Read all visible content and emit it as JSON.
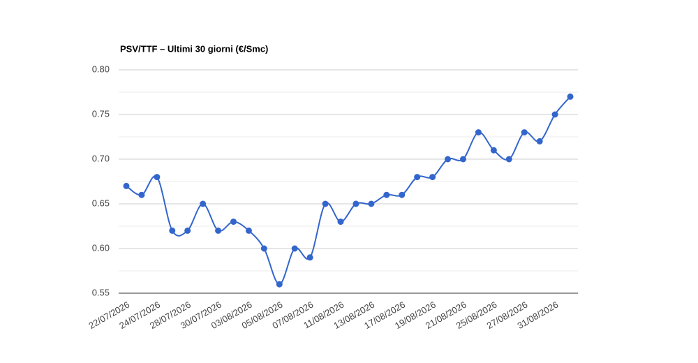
{
  "chart_data": {
    "type": "line",
    "title": "PSV/TTF – Ultimi 30 giorni (€/Smc)",
    "categories": [
      "22/07/2026",
      null,
      "24/07/2026",
      null,
      "28/07/2026",
      null,
      "30/07/2026",
      null,
      "03/08/2026",
      null,
      "05/08/2026",
      null,
      "07/08/2026",
      null,
      "11/08/2026",
      null,
      "13/08/2026",
      null,
      "17/08/2026",
      null,
      "19/08/2026",
      null,
      "21/08/2026",
      null,
      "25/08/2026",
      null,
      "27/08/2026",
      null,
      "31/08/2026",
      null
    ],
    "series": [
      {
        "name": "PSV/TTF",
        "color": "#3366cc",
        "values": [
          0.67,
          0.66,
          0.68,
          0.62,
          0.62,
          0.65,
          0.62,
          0.63,
          0.62,
          0.6,
          0.56,
          0.6,
          0.59,
          0.65,
          0.63,
          0.65,
          0.65,
          0.66,
          0.66,
          0.68,
          0.68,
          0.7,
          0.7,
          0.73,
          0.71,
          0.7,
          0.73,
          0.72,
          0.75,
          0.77
        ]
      }
    ],
    "ylim": [
      0.55,
      0.8
    ],
    "yticks": [
      {
        "value": 0.55,
        "label": "0.55"
      },
      {
        "value": 0.6,
        "label": "0.60"
      },
      {
        "value": 0.65,
        "label": "0.65"
      },
      {
        "value": 0.7,
        "label": "0.70"
      },
      {
        "value": 0.75,
        "label": "0.75"
      },
      {
        "value": 0.8,
        "label": "0.80"
      }
    ],
    "grid": true,
    "minor_grid": true,
    "smooth": true
  }
}
